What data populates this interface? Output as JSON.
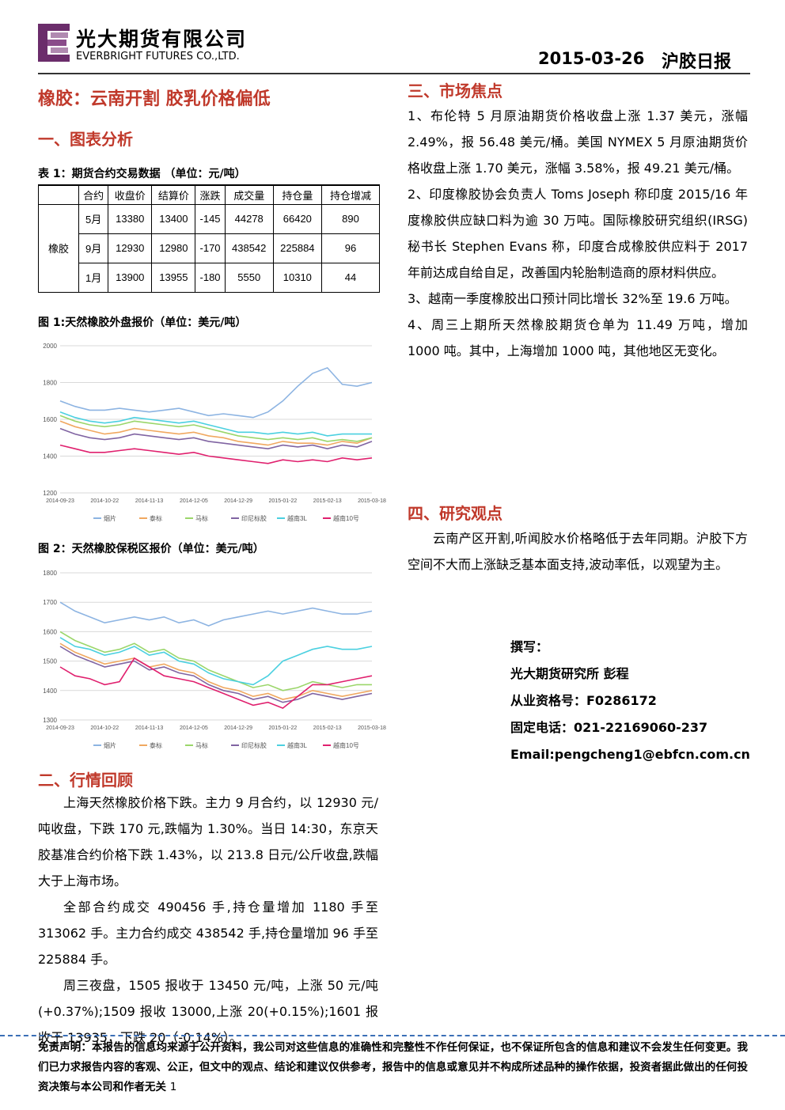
{
  "header": {
    "company_cn": "光大期货有限公司",
    "company_en": "EVERBRIGHT FUTURES CO.,LTD.",
    "date": "2015-03-26",
    "report": "沪胶日报"
  },
  "title": "橡胶：云南开割 胶乳价格偏低",
  "section1": {
    "heading": "一、图表分析",
    "table_caption": "表 1：期货合约交易数据 （单位：元/吨）"
  },
  "table": {
    "header": [
      "合约",
      "收盘价",
      "结算价",
      "涨跌",
      "成交量",
      "持仓量",
      "持仓增减"
    ],
    "row_label": "橡胶",
    "rows": [
      [
        "5月",
        13380,
        13400,
        -145,
        44278,
        66420,
        890
      ],
      [
        "9月",
        12930,
        12980,
        -170,
        438542,
        225884,
        96
      ],
      [
        "1月",
        13900,
        13955,
        -180,
        5550,
        10310,
        44
      ]
    ]
  },
  "chart_data": [
    {
      "type": "line",
      "title": "图 1:天然橡胶外盘报价（单位：美元/吨）",
      "categories": [
        "2014-09-23",
        null,
        null,
        "2014-10-22",
        null,
        null,
        "2014-11-13",
        null,
        null,
        "2014-12-05",
        null,
        null,
        "2014-12-29",
        null,
        null,
        "2015-01-22",
        null,
        null,
        "2015-02-13",
        null,
        null,
        "2015-03-18"
      ],
      "ylim": [
        1200,
        2000
      ],
      "yticks": [
        1200,
        1400,
        1600,
        1800,
        2000
      ],
      "grid": true,
      "series": [
        {
          "name": "烟片",
          "color": "#8db4e2",
          "values": [
            1700,
            1670,
            1650,
            1650,
            1660,
            1650,
            1640,
            1650,
            1660,
            1640,
            1620,
            1630,
            1620,
            1610,
            1640,
            1700,
            1780,
            1850,
            1880,
            1790,
            1780,
            1800
          ]
        },
        {
          "name": "泰标",
          "color": "#f0a860",
          "values": [
            1590,
            1560,
            1540,
            1520,
            1530,
            1550,
            1540,
            1530,
            1520,
            1530,
            1510,
            1500,
            1480,
            1470,
            1460,
            1480,
            1470,
            1470,
            1460,
            1480,
            1470,
            1500
          ]
        },
        {
          "name": "马标",
          "color": "#9bd66a",
          "values": [
            1620,
            1590,
            1570,
            1560,
            1570,
            1590,
            1580,
            1570,
            1560,
            1570,
            1550,
            1530,
            1510,
            1500,
            1490,
            1500,
            1490,
            1500,
            1480,
            1490,
            1480,
            1500
          ]
        },
        {
          "name": "印尼标胶",
          "color": "#8064a2",
          "values": [
            1550,
            1520,
            1500,
            1490,
            1500,
            1520,
            1510,
            1500,
            1490,
            1500,
            1480,
            1470,
            1460,
            1450,
            1440,
            1460,
            1450,
            1460,
            1440,
            1460,
            1450,
            1480
          ]
        },
        {
          "name": "越南3L",
          "color": "#4bd0e0",
          "values": [
            1640,
            1610,
            1590,
            1580,
            1590,
            1610,
            1600,
            1590,
            1580,
            1590,
            1570,
            1550,
            1530,
            1530,
            1520,
            1530,
            1520,
            1530,
            1510,
            1520,
            1520,
            1520
          ]
        },
        {
          "name": "越南10号",
          "color": "#e0206e",
          "values": [
            1460,
            1440,
            1420,
            1420,
            1430,
            1440,
            1430,
            1420,
            1410,
            1420,
            1400,
            1390,
            1380,
            1370,
            1360,
            1380,
            1370,
            1380,
            1370,
            1390,
            1380,
            1390
          ]
        }
      ]
    },
    {
      "type": "line",
      "title": "图 2：天然橡胶保税区报价（单位：美元/吨）",
      "categories": [
        "2014-09-23",
        null,
        null,
        "2014-10-22",
        null,
        null,
        "2014-11-13",
        null,
        null,
        "2014-12-05",
        null,
        null,
        "2014-12-29",
        null,
        null,
        "2015-01-22",
        null,
        null,
        "2015-02-13",
        null,
        null,
        "2015-03-18"
      ],
      "ylim": [
        1300,
        1800
      ],
      "yticks": [
        1300,
        1400,
        1500,
        1600,
        1700,
        1800
      ],
      "grid": true,
      "series": [
        {
          "name": "烟片",
          "color": "#8db4e2",
          "values": [
            1700,
            1670,
            1650,
            1630,
            1640,
            1650,
            1640,
            1650,
            1630,
            1640,
            1620,
            1640,
            1650,
            1660,
            1670,
            1660,
            1670,
            1680,
            1670,
            1660,
            1660,
            1670
          ]
        },
        {
          "name": "泰标",
          "color": "#f0a860",
          "values": [
            1560,
            1530,
            1510,
            1490,
            1500,
            1510,
            1480,
            1490,
            1470,
            1460,
            1430,
            1410,
            1400,
            1380,
            1390,
            1370,
            1380,
            1400,
            1390,
            1380,
            1390,
            1400
          ]
        },
        {
          "name": "马标",
          "color": "#9bd66a",
          "values": [
            1600,
            1570,
            1550,
            1530,
            1540,
            1560,
            1530,
            1540,
            1510,
            1500,
            1470,
            1450,
            1430,
            1410,
            1420,
            1400,
            1410,
            1430,
            1420,
            1410,
            1420,
            1420
          ]
        },
        {
          "name": "印尼标胶",
          "color": "#8064a2",
          "values": [
            1550,
            1520,
            1500,
            1480,
            1490,
            1500,
            1470,
            1480,
            1460,
            1450,
            1420,
            1400,
            1390,
            1370,
            1380,
            1360,
            1370,
            1390,
            1380,
            1370,
            1380,
            1390
          ]
        },
        {
          "name": "越南3L",
          "color": "#4bd0e0",
          "values": [
            1580,
            1550,
            1540,
            1520,
            1530,
            1550,
            1520,
            1530,
            1500,
            1490,
            1460,
            1440,
            1430,
            1420,
            1450,
            1500,
            1520,
            1540,
            1550,
            1540,
            1540,
            1550
          ]
        },
        {
          "name": "越南10号",
          "color": "#e0206e",
          "values": [
            1480,
            1450,
            1440,
            1420,
            1430,
            1510,
            1480,
            1450,
            1440,
            1430,
            1410,
            1390,
            1370,
            1350,
            1360,
            1340,
            1380,
            1420,
            1420,
            1430,
            1440,
            1450
          ]
        }
      ]
    }
  ],
  "section2": {
    "heading": "二、行情回顾",
    "paragraphs": [
      "上海天然橡胶价格下跌。主力 9 月合约，以 12930 元/吨收盘，下跌 170 元,跌幅为 1.30%。当日 14:30，东京天胶基准合约价格下跌 1.43%，以 213.8 日元/公斤收盘,跌幅大于上海市场。",
      "全部合约成交 490456 手,持仓量增加 1180 手至 313062 手。主力合约成交 438542 手,持仓量增加 96 手至 225884 手。",
      "周三夜盘，1505 报收于 13450 元/吨，上涨 50 元/吨(+0.37%);1509 报收 13000,上涨 20(+0.15%);1601 报收于 13935，下跌 20（-0.14%）。"
    ]
  },
  "section3": {
    "heading": "三、市场焦点",
    "paragraphs": [
      "1、布伦特 5 月原油期货价格收盘上涨 1.37 美元，涨幅 2.49%，报 56.48 美元/桶。美国 NYMEX 5 月原油期货价格收盘上涨 1.70 美元，涨幅 3.58%，报 49.21 美元/桶。",
      "2、印度橡胶协会负责人 Toms Joseph 称印度 2015/16 年度橡胶供应缺口料为逾 30 万吨。国际橡胶研究组织(IRSG)秘书长 Stephen Evans 称，印度合成橡胶供应料于 2017 年前达成自给自足，改善国内轮胎制造商的原材料供应。",
      "3、越南一季度橡胶出口预计同比增长 32%至 19.6 万吨。",
      "4、周三上期所天然橡胶期货仓单为 11.49 万吨，增加 1000 吨。其中，上海增加 1000 吨，其他地区无变化。"
    ]
  },
  "section4": {
    "heading": "四、研究观点",
    "paragraphs": [
      "云南产区开割,听闻胶水价格略低于去年同期。沪胶下方空间不大而上涨缺乏基本面支持,波动率低，以观望为主。"
    ]
  },
  "author": {
    "label": "撰写：",
    "lines": [
      "光大期货研究所 彭程",
      "从业资格号：F0286172",
      "固定电话：021-22169060-237",
      "Email:pengcheng1@ebfcn.com.cn"
    ]
  },
  "disclaimer": "免责声明：本报告的信息均来源于公开资料，我公司对这些信息的准确性和完整性不作任何保证，也不保证所包含的信息和建议不会发生任何变更。我们已力求报告内容的客观、公正，但文中的观点、结论和建议仅供参考，报告中的信息或意见并不构成所述品种的操作依据，投资者据此做出的任何投资决策与本公司和作者无关",
  "page_number": "1"
}
